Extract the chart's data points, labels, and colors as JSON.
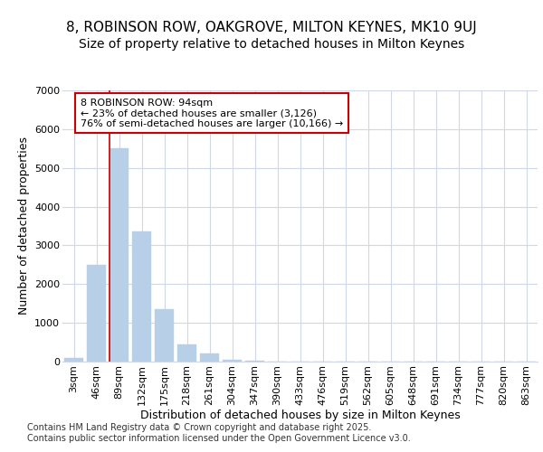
{
  "title_line1": "8, ROBINSON ROW, OAKGROVE, MILTON KEYNES, MK10 9UJ",
  "title_line2": "Size of property relative to detached houses in Milton Keynes",
  "xlabel": "Distribution of detached houses by size in Milton Keynes",
  "ylabel": "Number of detached properties",
  "categories": [
    "3sqm",
    "46sqm",
    "89sqm",
    "132sqm",
    "175sqm",
    "218sqm",
    "261sqm",
    "304sqm",
    "347sqm",
    "390sqm",
    "433sqm",
    "476sqm",
    "519sqm",
    "562sqm",
    "605sqm",
    "648sqm",
    "691sqm",
    "734sqm",
    "777sqm",
    "820sqm",
    "863sqm"
  ],
  "values": [
    100,
    2500,
    5500,
    3350,
    1350,
    450,
    200,
    50,
    30,
    0,
    0,
    0,
    0,
    0,
    0,
    0,
    0,
    0,
    0,
    0,
    0
  ],
  "bar_color": "#b8cfe8",
  "bar_edge_color": "#b8cfe8",
  "vline_color": "#cc0000",
  "annotation_text": "8 ROBINSON ROW: 94sqm\n← 23% of detached houses are smaller (3,126)\n76% of semi-detached houses are larger (10,166) →",
  "annotation_box_edge": "#cc0000",
  "bg_color": "#ffffff",
  "plot_bg_color": "#ffffff",
  "grid_color": "#d0d8e8",
  "footer_text": "Contains HM Land Registry data © Crown copyright and database right 2025.\nContains public sector information licensed under the Open Government Licence v3.0.",
  "ylim": [
    0,
    7000
  ],
  "yticks": [
    0,
    1000,
    2000,
    3000,
    4000,
    5000,
    6000,
    7000
  ],
  "title_fontsize": 11,
  "subtitle_fontsize": 10,
  "tick_fontsize": 8,
  "axis_label_fontsize": 9,
  "annotation_fontsize": 8,
  "footer_fontsize": 7
}
